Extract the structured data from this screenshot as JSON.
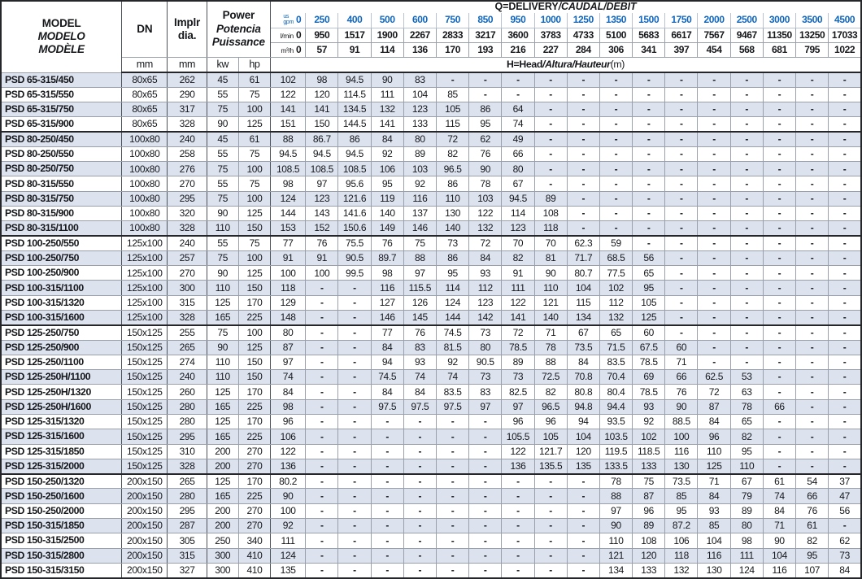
{
  "colors": {
    "accent_blue": "#1166bb",
    "stripe": "#dce2ee",
    "grid": "#99a0ab",
    "heavy_line": "#24262a"
  },
  "header": {
    "model_lines": [
      "MODEL",
      "MODELO",
      "MODÈLE"
    ],
    "dn_label": "DN",
    "dn_unit": "mm",
    "impeller_lines": [
      "Implr",
      "dia."
    ],
    "impeller_unit": "mm",
    "power_lines": [
      "Power",
      "Potencia",
      "Puissance"
    ],
    "power_units": [
      "kw",
      "hp"
    ],
    "q_banner_plain": "Q=DELIVERY",
    "q_banner_italic": "/CAUDAL/DÉBIT",
    "h_banner_plain": "H=Head",
    "h_banner_italic": "/Altura/Hauteur",
    "h_banner_unit": "(m)",
    "flow_unit_labels": {
      "gpm": [
        "us",
        "gpm"
      ],
      "lmin": [
        "l/min"
      ],
      "m3h": [
        "m³/h"
      ]
    },
    "flow": {
      "gpm": [
        "0",
        "250",
        "400",
        "500",
        "600",
        "750",
        "850",
        "950",
        "1000",
        "1250",
        "1350",
        "1500",
        "1750",
        "2000",
        "2500",
        "3000",
        "3500",
        "4500"
      ],
      "lmin": [
        "0",
        "950",
        "1517",
        "1900",
        "2267",
        "2833",
        "3217",
        "3600",
        "3783",
        "4733",
        "5100",
        "5683",
        "6617",
        "7567",
        "9467",
        "11350",
        "13250",
        "17033"
      ],
      "m3h": [
        "0",
        "57",
        "91",
        "114",
        "136",
        "170",
        "193",
        "216",
        "227",
        "284",
        "306",
        "341",
        "397",
        "454",
        "568",
        "681",
        "795",
        "1022"
      ]
    }
  },
  "group_end_rows": [
    3,
    10,
    16,
    26
  ],
  "rows": [
    {
      "model": "PSD 65-315/450",
      "dn": "80x65",
      "dia": "262",
      "kw": "45",
      "hp": "61",
      "h": [
        "102",
        "98",
        "94.5",
        "90",
        "83",
        "-",
        "-",
        "-",
        "-",
        "-",
        "-",
        "-",
        "-",
        "-",
        "-",
        "-",
        "-",
        "-"
      ]
    },
    {
      "model": "PSD 65-315/550",
      "dn": "80x65",
      "dia": "290",
      "kw": "55",
      "hp": "75",
      "h": [
        "122",
        "120",
        "114.5",
        "111",
        "104",
        "85",
        "-",
        "-",
        "-",
        "-",
        "-",
        "-",
        "-",
        "-",
        "-",
        "-",
        "-",
        "-"
      ]
    },
    {
      "model": "PSD 65-315/750",
      "dn": "80x65",
      "dia": "317",
      "kw": "75",
      "hp": "100",
      "h": [
        "141",
        "141",
        "134.5",
        "132",
        "123",
        "105",
        "86",
        "64",
        "-",
        "-",
        "-",
        "-",
        "-",
        "-",
        "-",
        "-",
        "-",
        "-"
      ]
    },
    {
      "model": "PSD 65-315/900",
      "dn": "80x65",
      "dia": "328",
      "kw": "90",
      "hp": "125",
      "h": [
        "151",
        "150",
        "144.5",
        "141",
        "133",
        "115",
        "95",
        "74",
        "-",
        "-",
        "-",
        "-",
        "-",
        "-",
        "-",
        "-",
        "-",
        "-"
      ]
    },
    {
      "model": "PSD 80-250/450",
      "dn": "100x80",
      "dia": "240",
      "kw": "45",
      "hp": "61",
      "h": [
        "88",
        "86.7",
        "86",
        "84",
        "80",
        "72",
        "62",
        "49",
        "-",
        "-",
        "-",
        "-",
        "-",
        "-",
        "-",
        "-",
        "-",
        "-"
      ]
    },
    {
      "model": "PSD 80-250/550",
      "dn": "100x80",
      "dia": "258",
      "kw": "55",
      "hp": "75",
      "h": [
        "94.5",
        "94.5",
        "94.5",
        "92",
        "89",
        "82",
        "76",
        "66",
        "-",
        "-",
        "-",
        "-",
        "-",
        "-",
        "-",
        "-",
        "-",
        "-"
      ]
    },
    {
      "model": "PSD 80-250/750",
      "dn": "100x80",
      "dia": "276",
      "kw": "75",
      "hp": "100",
      "h": [
        "108.5",
        "108.5",
        "108.5",
        "106",
        "103",
        "96.5",
        "90",
        "80",
        "-",
        "-",
        "-",
        "-",
        "-",
        "-",
        "-",
        "-",
        "-",
        "-"
      ]
    },
    {
      "model": "PSD 80-315/550",
      "dn": "100x80",
      "dia": "270",
      "kw": "55",
      "hp": "75",
      "h": [
        "98",
        "97",
        "95.6",
        "95",
        "92",
        "86",
        "78",
        "67",
        "-",
        "-",
        "-",
        "-",
        "-",
        "-",
        "-",
        "-",
        "-",
        "-"
      ]
    },
    {
      "model": "PSD 80-315/750",
      "dn": "100x80",
      "dia": "295",
      "kw": "75",
      "hp": "100",
      "h": [
        "124",
        "123",
        "121.6",
        "119",
        "116",
        "110",
        "103",
        "94.5",
        "89",
        "-",
        "-",
        "-",
        "-",
        "-",
        "-",
        "-",
        "-",
        "-"
      ]
    },
    {
      "model": "PSD 80-315/900",
      "dn": "100x80",
      "dia": "320",
      "kw": "90",
      "hp": "125",
      "h": [
        "144",
        "143",
        "141.6",
        "140",
        "137",
        "130",
        "122",
        "114",
        "108",
        "-",
        "-",
        "-",
        "-",
        "-",
        "-",
        "-",
        "-",
        "-"
      ]
    },
    {
      "model": "PSD 80-315/1100",
      "dn": "100x80",
      "dia": "328",
      "kw": "110",
      "hp": "150",
      "h": [
        "153",
        "152",
        "150.6",
        "149",
        "146",
        "140",
        "132",
        "123",
        "118",
        "-",
        "-",
        "-",
        "-",
        "-",
        "-",
        "-",
        "-",
        "-"
      ]
    },
    {
      "model": "PSD 100-250/550",
      "dn": "125x100",
      "dia": "240",
      "kw": "55",
      "hp": "75",
      "h": [
        "77",
        "76",
        "75.5",
        "76",
        "75",
        "73",
        "72",
        "70",
        "70",
        "62.3",
        "59",
        "-",
        "-",
        "-",
        "-",
        "-",
        "-",
        "-"
      ]
    },
    {
      "model": "PSD 100-250/750",
      "dn": "125x100",
      "dia": "257",
      "kw": "75",
      "hp": "100",
      "h": [
        "91",
        "91",
        "90.5",
        "89.7",
        "88",
        "86",
        "84",
        "82",
        "81",
        "71.7",
        "68.5",
        "56",
        "-",
        "-",
        "-",
        "-",
        "-",
        "-"
      ]
    },
    {
      "model": "PSD 100-250/900",
      "dn": "125x100",
      "dia": "270",
      "kw": "90",
      "hp": "125",
      "h": [
        "100",
        "100",
        "99.5",
        "98",
        "97",
        "95",
        "93",
        "91",
        "90",
        "80.7",
        "77.5",
        "65",
        "-",
        "-",
        "-",
        "-",
        "-",
        "-"
      ]
    },
    {
      "model": "PSD 100-315/1100",
      "dn": "125x100",
      "dia": "300",
      "kw": "110",
      "hp": "150",
      "h": [
        "118",
        "-",
        "-",
        "116",
        "115.5",
        "114",
        "112",
        "111",
        "110",
        "104",
        "102",
        "95",
        "-",
        "-",
        "-",
        "-",
        "-",
        "-"
      ]
    },
    {
      "model": "PSD 100-315/1320",
      "dn": "125x100",
      "dia": "315",
      "kw": "125",
      "hp": "170",
      "h": [
        "129",
        "-",
        "-",
        "127",
        "126",
        "124",
        "123",
        "122",
        "121",
        "115",
        "112",
        "105",
        "-",
        "-",
        "-",
        "-",
        "-",
        "-"
      ]
    },
    {
      "model": "PSD 100-315/1600",
      "dn": "125x100",
      "dia": "328",
      "kw": "165",
      "hp": "225",
      "h": [
        "148",
        "-",
        "-",
        "146",
        "145",
        "144",
        "142",
        "141",
        "140",
        "134",
        "132",
        "125",
        "-",
        "-",
        "-",
        "-",
        "-",
        "-"
      ]
    },
    {
      "model": "PSD 125-250/750",
      "dn": "150x125",
      "dia": "255",
      "kw": "75",
      "hp": "100",
      "h": [
        "80",
        "-",
        "-",
        "77",
        "76",
        "74.5",
        "73",
        "72",
        "71",
        "67",
        "65",
        "60",
        "-",
        "-",
        "-",
        "-",
        "-",
        "-"
      ]
    },
    {
      "model": "PSD 125-250/900",
      "dn": "150x125",
      "dia": "265",
      "kw": "90",
      "hp": "125",
      "h": [
        "87",
        "-",
        "-",
        "84",
        "83",
        "81.5",
        "80",
        "78.5",
        "78",
        "73.5",
        "71.5",
        "67.5",
        "60",
        "-",
        "-",
        "-",
        "-",
        "-"
      ]
    },
    {
      "model": "PSD 125-250/1100",
      "dn": "150x125",
      "dia": "274",
      "kw": "110",
      "hp": "150",
      "h": [
        "97",
        "-",
        "-",
        "94",
        "93",
        "92",
        "90.5",
        "89",
        "88",
        "84",
        "83.5",
        "78.5",
        "71",
        "-",
        "-",
        "-",
        "-",
        "-"
      ]
    },
    {
      "model": "PSD 125-250H/1100",
      "dn": "150x125",
      "dia": "240",
      "kw": "110",
      "hp": "150",
      "h": [
        "74",
        "-",
        "-",
        "74.5",
        "74",
        "74",
        "73",
        "73",
        "72.5",
        "70.8",
        "70.4",
        "69",
        "66",
        "62.5",
        "53",
        "-",
        "-",
        "-"
      ]
    },
    {
      "model": "PSD 125-250H/1320",
      "dn": "150x125",
      "dia": "260",
      "kw": "125",
      "hp": "170",
      "h": [
        "84",
        "-",
        "-",
        "84",
        "84",
        "83.5",
        "83",
        "82.5",
        "82",
        "80.8",
        "80.4",
        "78.5",
        "76",
        "72",
        "63",
        "-",
        "-",
        "-"
      ]
    },
    {
      "model": "PSD 125-250H/1600",
      "dn": "150x125",
      "dia": "280",
      "kw": "165",
      "hp": "225",
      "h": [
        "98",
        "-",
        "-",
        "97.5",
        "97.5",
        "97.5",
        "97",
        "97",
        "96.5",
        "94.8",
        "94.4",
        "93",
        "90",
        "87",
        "78",
        "66",
        "-",
        "-"
      ]
    },
    {
      "model": "PSD 125-315/1320",
      "dn": "150x125",
      "dia": "280",
      "kw": "125",
      "hp": "170",
      "h": [
        "96",
        "-",
        "-",
        "-",
        "-",
        "-",
        "-",
        "96",
        "96",
        "94",
        "93.5",
        "92",
        "88.5",
        "84",
        "65",
        "-",
        "-",
        "-"
      ]
    },
    {
      "model": "PSD 125-315/1600",
      "dn": "150x125",
      "dia": "295",
      "kw": "165",
      "hp": "225",
      "h": [
        "106",
        "-",
        "-",
        "-",
        "-",
        "-",
        "-",
        "105.5",
        "105",
        "104",
        "103.5",
        "102",
        "100",
        "96",
        "82",
        "-",
        "-",
        "-"
      ]
    },
    {
      "model": "PSD 125-315/1850",
      "dn": "150x125",
      "dia": "310",
      "kw": "200",
      "hp": "270",
      "h": [
        "122",
        "-",
        "-",
        "-",
        "-",
        "-",
        "-",
        "122",
        "121.7",
        "120",
        "119.5",
        "118.5",
        "116",
        "110",
        "95",
        "-",
        "-",
        "-"
      ]
    },
    {
      "model": "PSD 125-315/2000",
      "dn": "150x125",
      "dia": "328",
      "kw": "200",
      "hp": "270",
      "h": [
        "136",
        "-",
        "-",
        "-",
        "-",
        "-",
        "-",
        "136",
        "135.5",
        "135",
        "133.5",
        "133",
        "130",
        "125",
        "110",
        "-",
        "-",
        "-"
      ]
    },
    {
      "model": "PSD 150-250/1320",
      "dn": "200x150",
      "dia": "265",
      "kw": "125",
      "hp": "170",
      "h": [
        "80.2",
        "-",
        "-",
        "-",
        "-",
        "-",
        "-",
        "-",
        "-",
        "-",
        "78",
        "75",
        "73.5",
        "71",
        "67",
        "61",
        "54",
        "37"
      ]
    },
    {
      "model": "PSD 150-250/1600",
      "dn": "200x150",
      "dia": "280",
      "kw": "165",
      "hp": "225",
      "h": [
        "90",
        "-",
        "-",
        "-",
        "-",
        "-",
        "-",
        "-",
        "-",
        "-",
        "88",
        "87",
        "85",
        "84",
        "79",
        "74",
        "66",
        "47"
      ]
    },
    {
      "model": "PSD 150-250/2000",
      "dn": "200x150",
      "dia": "295",
      "kw": "200",
      "hp": "270",
      "h": [
        "100",
        "-",
        "-",
        "-",
        "-",
        "-",
        "-",
        "-",
        "-",
        "-",
        "97",
        "96",
        "95",
        "93",
        "89",
        "84",
        "76",
        "56"
      ]
    },
    {
      "model": "PSD 150-315/1850",
      "dn": "200x150",
      "dia": "287",
      "kw": "200",
      "hp": "270",
      "h": [
        "92",
        "-",
        "-",
        "-",
        "-",
        "-",
        "-",
        "-",
        "-",
        "-",
        "90",
        "89",
        "87.2",
        "85",
        "80",
        "71",
        "61",
        "-"
      ]
    },
    {
      "model": "PSD 150-315/2500",
      "dn": "200x150",
      "dia": "305",
      "kw": "250",
      "hp": "340",
      "h": [
        "111",
        "-",
        "-",
        "-",
        "-",
        "-",
        "-",
        "-",
        "-",
        "-",
        "110",
        "108",
        "106",
        "104",
        "98",
        "90",
        "82",
        "62"
      ]
    },
    {
      "model": "PSD 150-315/2800",
      "dn": "200x150",
      "dia": "315",
      "kw": "300",
      "hp": "410",
      "h": [
        "124",
        "-",
        "-",
        "-",
        "-",
        "-",
        "-",
        "-",
        "-",
        "-",
        "121",
        "120",
        "118",
        "116",
        "111",
        "104",
        "95",
        "73"
      ]
    },
    {
      "model": "PSD 150-315/3150",
      "dn": "200x150",
      "dia": "327",
      "kw": "300",
      "hp": "410",
      "h": [
        "135",
        "-",
        "-",
        "-",
        "-",
        "-",
        "-",
        "-",
        "-",
        "-",
        "134",
        "133",
        "132",
        "130",
        "124",
        "116",
        "107",
        "84"
      ]
    }
  ]
}
